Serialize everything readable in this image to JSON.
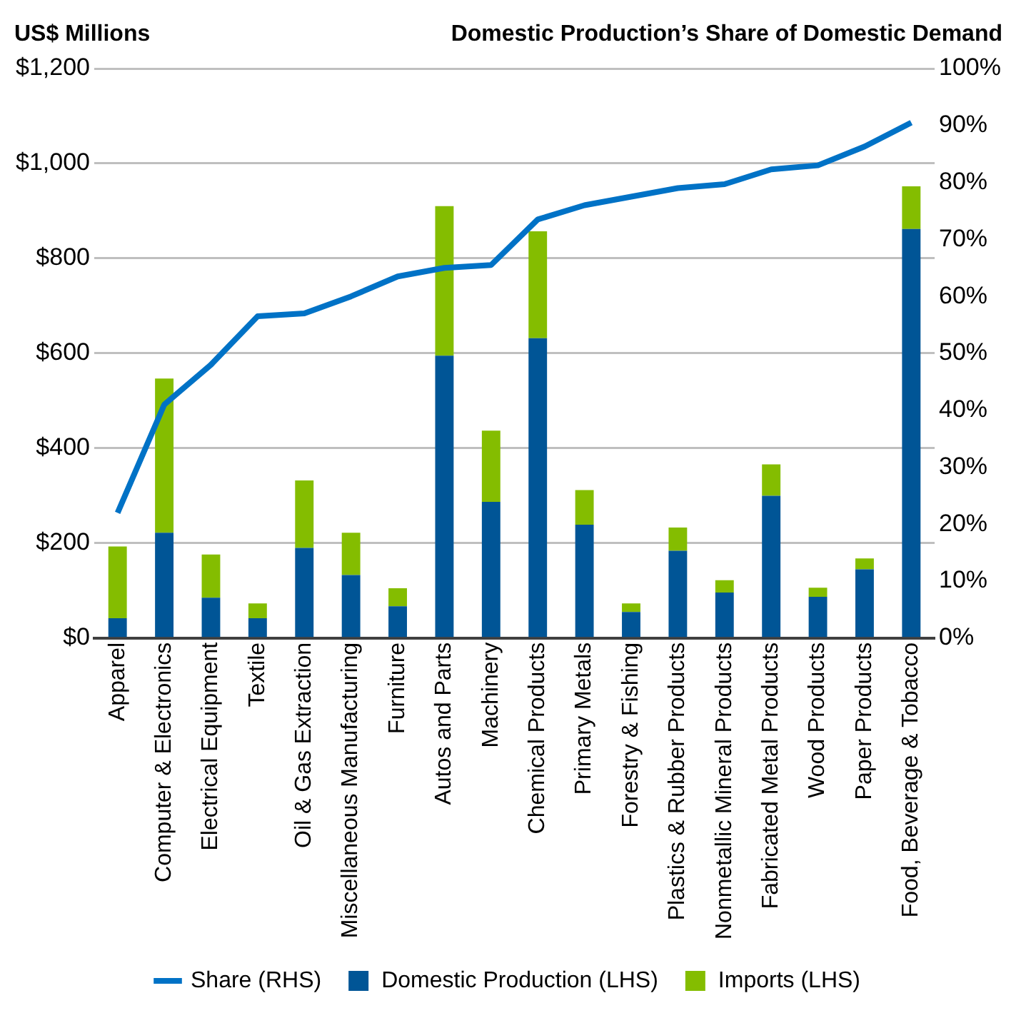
{
  "chart_data": {
    "type": "bar",
    "stacked": true,
    "ylabel": "US$ Millions",
    "y2label": "Domestic Production’s Share of Domestic Demand",
    "categories": [
      "Apparel",
      "Computer & Electronics",
      "Electrical Equipment",
      "Textile",
      "Oil & Gas Extraction",
      "Miscellaneous Manufacturing",
      "Furniture",
      "Autos and Parts",
      "Machinery",
      "Chemical Products",
      "Primary Metals",
      "Forestry & Fishing",
      "Plastics & Rubber Products",
      "Nonmetallic Mineral Products",
      "Fabricated Metal Products",
      "Wood Products",
      "Paper Products",
      "Food, Beverage & Tobacco"
    ],
    "series": [
      {
        "name": "Domestic Production (LHS)",
        "color": "#005596",
        "values": [
          42,
          222,
          85,
          42,
          190,
          133,
          67,
          595,
          287,
          632,
          239,
          55,
          184,
          96,
          300,
          87,
          145,
          862
        ]
      },
      {
        "name": "Imports (LHS)",
        "color": "#84bd00",
        "values": [
          151,
          325,
          91,
          31,
          142,
          89,
          38,
          315,
          150,
          225,
          73,
          18,
          49,
          26,
          66,
          19,
          23,
          90
        ]
      },
      {
        "name": "Share (RHS)",
        "type": "line",
        "axis": "y2",
        "color": "#0072c6",
        "marker": "none",
        "line_style": "solid",
        "values": [
          22,
          41,
          48,
          56.5,
          57,
          60,
          63.5,
          65,
          65.5,
          73.5,
          76,
          77.5,
          79,
          79.7,
          82.3,
          83,
          86.3,
          90.5
        ]
      }
    ],
    "ylim": [
      0,
      1200
    ],
    "yticks": [
      {
        "value": 0,
        "label": "$0"
      },
      {
        "value": 200,
        "label": "$200"
      },
      {
        "value": 400,
        "label": "$400"
      },
      {
        "value": 600,
        "label": "$600"
      },
      {
        "value": 800,
        "label": "$800"
      },
      {
        "value": 1000,
        "label": "$1,000"
      },
      {
        "value": 1200,
        "label": "$1,200"
      }
    ],
    "y2lim": [
      0,
      100
    ],
    "y2ticks": [
      {
        "value": 0,
        "label": "0%"
      },
      {
        "value": 10,
        "label": "10%"
      },
      {
        "value": 20,
        "label": "20%"
      },
      {
        "value": 30,
        "label": "30%"
      },
      {
        "value": 40,
        "label": "40%"
      },
      {
        "value": 50,
        "label": "50%"
      },
      {
        "value": 60,
        "label": "60%"
      },
      {
        "value": 70,
        "label": "70%"
      },
      {
        "value": 80,
        "label": "80%"
      },
      {
        "value": 90,
        "label": "90%"
      },
      {
        "value": 100,
        "label": "100%"
      }
    ],
    "grid": "y",
    "legend": "bottom"
  }
}
